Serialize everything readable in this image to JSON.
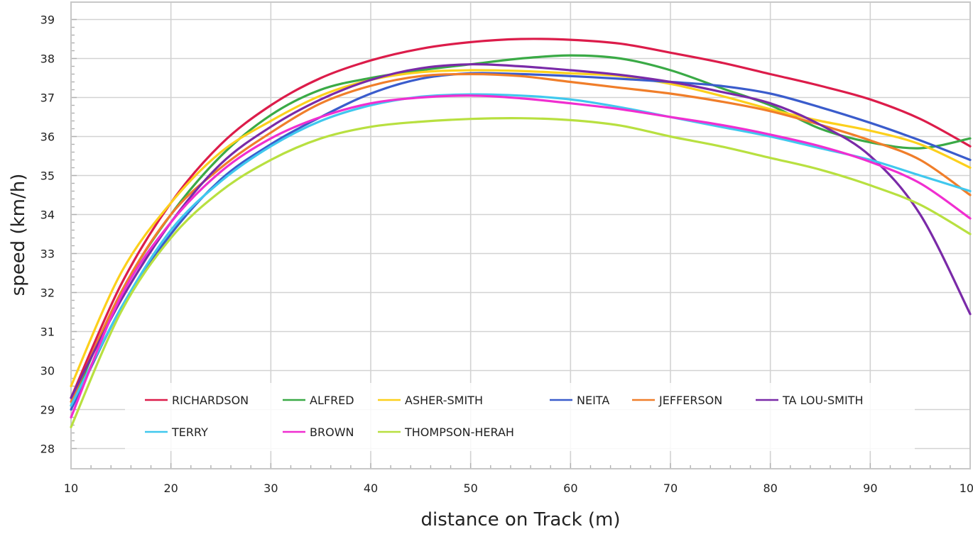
{
  "chart_data": {
    "type": "line",
    "xlabel": "distance on Track (m)",
    "ylabel": "speed (km/h)",
    "xlim": [
      10,
      100
    ],
    "ylim": [
      27.6,
      39.3
    ],
    "x_ticks": [
      10,
      20,
      30,
      40,
      50,
      60,
      70,
      80,
      90,
      100
    ],
    "y_ticks": [
      28,
      29,
      30,
      31,
      32,
      33,
      34,
      35,
      36,
      37,
      38,
      39
    ],
    "grid": true,
    "legend_position": "bottom",
    "x": [
      10,
      15,
      20,
      25,
      30,
      35,
      40,
      45,
      50,
      55,
      60,
      65,
      70,
      75,
      80,
      85,
      90,
      95,
      100
    ],
    "series": [
      {
        "name": "RICHARDSON",
        "color": "#dc1c4a",
        "values": [
          29.3,
          32.2,
          34.3,
          35.8,
          36.8,
          37.5,
          37.95,
          38.25,
          38.42,
          38.5,
          38.48,
          38.38,
          38.15,
          37.9,
          37.6,
          37.3,
          36.95,
          36.45,
          35.75
        ]
      },
      {
        "name": "ALFRED",
        "color": "#3aaa46",
        "values": [
          29.1,
          32.0,
          34.0,
          35.5,
          36.55,
          37.2,
          37.5,
          37.7,
          37.85,
          38.0,
          38.08,
          38.0,
          37.7,
          37.25,
          36.8,
          36.2,
          35.85,
          35.7,
          35.95
        ]
      },
      {
        "name": "ASHER-SMITH",
        "color": "#fcd01c",
        "values": [
          29.6,
          32.5,
          34.3,
          35.6,
          36.4,
          37.05,
          37.45,
          37.65,
          37.7,
          37.68,
          37.62,
          37.55,
          37.35,
          37.05,
          36.7,
          36.4,
          36.15,
          35.8,
          35.2
        ]
      },
      {
        "name": "NEITA",
        "color": "#3a5ccc",
        "values": [
          29.0,
          31.6,
          33.5,
          34.9,
          35.8,
          36.5,
          37.1,
          37.48,
          37.62,
          37.6,
          37.55,
          37.48,
          37.4,
          37.3,
          37.1,
          36.75,
          36.35,
          35.9,
          35.4
        ]
      },
      {
        "name": "JEFFERSON",
        "color": "#f07e2a",
        "values": [
          29.2,
          32.0,
          34.0,
          35.2,
          36.1,
          36.85,
          37.3,
          37.55,
          37.6,
          37.55,
          37.4,
          37.25,
          37.1,
          36.9,
          36.65,
          36.3,
          35.9,
          35.4,
          34.5
        ]
      },
      {
        "name": "TA LOU-SMITH",
        "color": "#7a2aa8",
        "values": [
          29.3,
          31.8,
          33.8,
          35.3,
          36.25,
          36.95,
          37.45,
          37.75,
          37.85,
          37.8,
          37.7,
          37.58,
          37.4,
          37.15,
          36.85,
          36.3,
          35.5,
          34.0,
          31.45
        ]
      },
      {
        "name": "TERRY",
        "color": "#40c8ee",
        "values": [
          29.1,
          31.6,
          33.6,
          34.85,
          35.75,
          36.4,
          36.8,
          37.02,
          37.08,
          37.05,
          36.95,
          36.75,
          36.5,
          36.25,
          36.0,
          35.7,
          35.4,
          35.0,
          34.6
        ]
      },
      {
        "name": "BROWN",
        "color": "#f02ed0",
        "values": [
          28.8,
          31.9,
          33.8,
          35.1,
          35.95,
          36.5,
          36.85,
          37.0,
          37.05,
          36.98,
          36.85,
          36.7,
          36.5,
          36.3,
          36.05,
          35.75,
          35.35,
          34.8,
          33.9
        ]
      },
      {
        "name": "THOMPSON-HERAH",
        "color": "#b8e040",
        "values": [
          28.55,
          31.5,
          33.4,
          34.6,
          35.4,
          35.95,
          36.25,
          36.38,
          36.45,
          36.47,
          36.42,
          36.28,
          36.0,
          35.75,
          35.45,
          35.15,
          34.75,
          34.25,
          33.5
        ]
      }
    ]
  }
}
